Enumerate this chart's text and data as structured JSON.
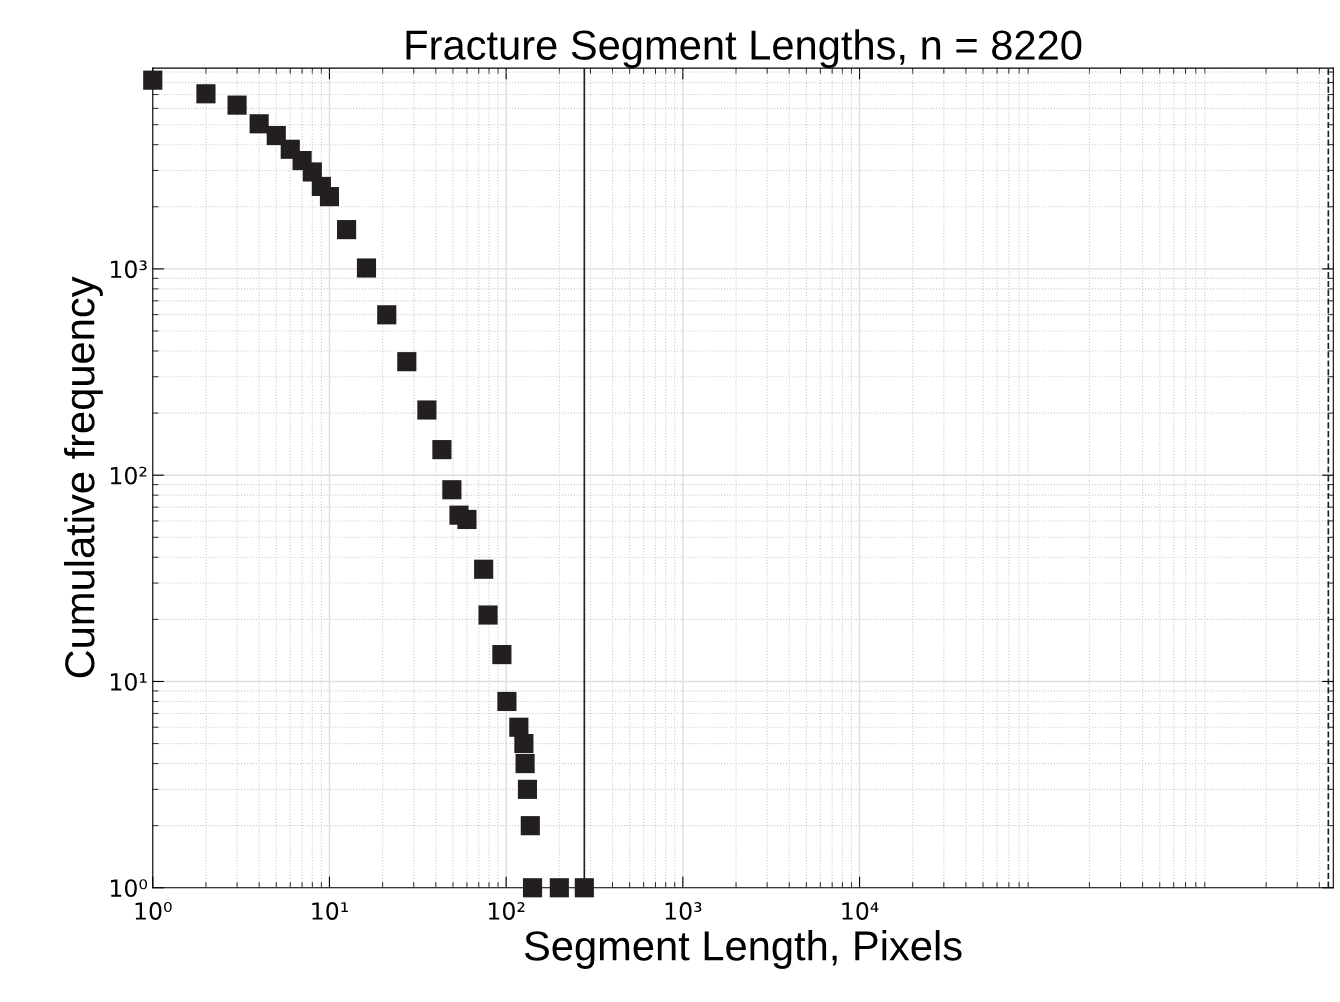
{
  "chart_data": {
    "type": "scatter",
    "title": "Fracture Segment Lengths, n = 8220",
    "xlabel": "Segment Length, Pixels",
    "ylabel": "Cumulative frequency",
    "log": "xy",
    "grid": true,
    "marker": "square",
    "series": [
      {
        "color": "#231f20",
        "x": [
          1,
          2,
          3,
          4,
          5,
          6,
          7,
          8,
          9,
          10,
          12.5,
          16.2,
          21.1,
          27.4,
          35.6,
          43.3,
          49.3,
          54.1,
          60,
          74.6,
          79,
          94.6,
          101,
          118,
          126,
          128,
          132,
          137,
          141,
          200,
          277
        ],
        "values": [
          8220,
          7060,
          6220,
          5050,
          4430,
          3800,
          3350,
          2950,
          2510,
          2240,
          1550,
          1010,
          599,
          355,
          207,
          133,
          85,
          64,
          61,
          35,
          21,
          13.5,
          8,
          6,
          5,
          4,
          3,
          2,
          1,
          1,
          1
        ]
      }
    ],
    "xlim": [
      1,
      4800000
    ],
    "ylim": [
      1,
      9400
    ],
    "xticks": [
      {
        "value": 1,
        "label": "10⁰"
      },
      {
        "value": 10,
        "label": "10¹"
      },
      {
        "value": 100,
        "label": "10²"
      },
      {
        "value": 1000,
        "label": "10³"
      },
      {
        "value": 10000,
        "label": "10⁴"
      }
    ],
    "yticks": [
      {
        "value": 1,
        "label": "10⁰"
      },
      {
        "value": 10,
        "label": "10¹"
      },
      {
        "value": 100,
        "label": "10²"
      },
      {
        "value": 1000,
        "label": "10³"
      }
    ],
    "ref_lines": [
      {
        "axis": "x",
        "value": 277,
        "color": "#231f20",
        "line_style": "solid"
      },
      {
        "axis": "x",
        "value": 4500000,
        "color": "#231f20",
        "line_style": "dashed"
      }
    ]
  }
}
